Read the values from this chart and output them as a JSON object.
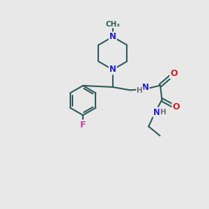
{
  "bg_color": "#e8e8e8",
  "bond_color": "#2d5a5a",
  "N_color": "#2020cc",
  "O_color": "#cc2020",
  "F_color": "#cc44aa",
  "H_color": "#707070",
  "lw": 1.5,
  "xlim": [
    0,
    10
  ],
  "ylim": [
    0,
    10
  ]
}
